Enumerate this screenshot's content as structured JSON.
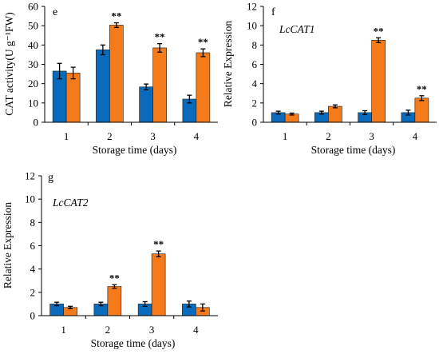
{
  "colors": {
    "series1": "#0a6bbd",
    "series2": "#f47a1a"
  },
  "chart_data": [
    {
      "type": "bar",
      "panel": "e",
      "categories": [
        "1",
        "2",
        "3",
        "4"
      ],
      "series": [
        {
          "values": [
            26.5,
            37.5,
            18.3,
            12.0
          ],
          "errors": [
            4.0,
            2.5,
            1.5,
            2.0
          ]
        },
        {
          "values": [
            25.5,
            50.3,
            38.5,
            36.0
          ],
          "errors": [
            3.0,
            1.2,
            2.2,
            2.0
          ]
        }
      ],
      "significance": [
        "",
        "**",
        "**",
        "**"
      ],
      "ylim": [
        0,
        60
      ],
      "yticks": [
        "0",
        "10",
        "20",
        "30",
        "40",
        "50",
        "60"
      ],
      "ylabel": "CAT activity(U g⁻¹FW)",
      "xlabel": "Storage time (days)",
      "gene_label": ""
    },
    {
      "type": "bar",
      "panel": "f",
      "categories": [
        "1",
        "2",
        "3",
        "4"
      ],
      "series": [
        {
          "values": [
            1.0,
            1.0,
            1.0,
            1.0
          ],
          "errors": [
            0.15,
            0.15,
            0.2,
            0.25
          ]
        },
        {
          "values": [
            0.85,
            1.65,
            8.5,
            2.5
          ],
          "errors": [
            0.1,
            0.15,
            0.25,
            0.25
          ]
        }
      ],
      "significance": [
        "",
        "",
        "**",
        "**"
      ],
      "ylim": [
        0,
        12
      ],
      "yticks": [
        "0",
        "2",
        "4",
        "6",
        "8",
        "10",
        "12"
      ],
      "ylabel": "Relative Expression",
      "xlabel": "Storage time (days)",
      "gene_label": "LcCAT1"
    },
    {
      "type": "bar",
      "panel": "g",
      "categories": [
        "1",
        "2",
        "3",
        "4"
      ],
      "series": [
        {
          "values": [
            1.0,
            1.0,
            1.0,
            1.0
          ],
          "errors": [
            0.15,
            0.15,
            0.2,
            0.25
          ]
        },
        {
          "values": [
            0.7,
            2.5,
            5.3,
            0.7
          ],
          "errors": [
            0.1,
            0.15,
            0.25,
            0.3
          ]
        }
      ],
      "significance": [
        "",
        "**",
        "**",
        ""
      ],
      "ylim": [
        0,
        12
      ],
      "yticks": [
        "0",
        "2",
        "4",
        "6",
        "8",
        "10",
        "12"
      ],
      "ylabel": "Relative Expression",
      "xlabel": "Storage time (days)",
      "gene_label": "LcCAT2"
    }
  ]
}
